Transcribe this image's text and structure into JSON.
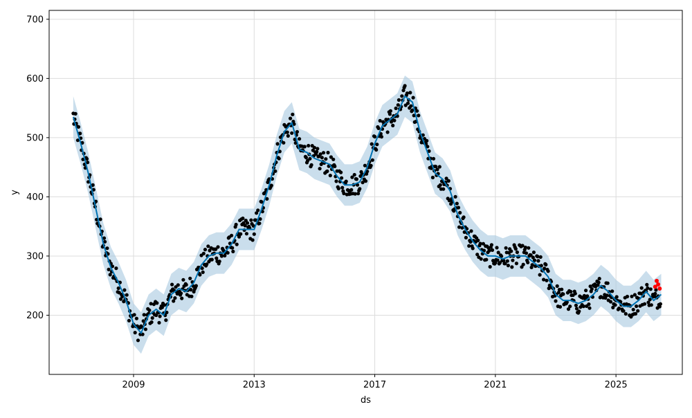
{
  "chart_data": {
    "type": "scatter",
    "title": "",
    "xlabel": "ds",
    "ylabel": "y",
    "xlim": [
      2006.2,
      2027.2
    ],
    "ylim": [
      100,
      715
    ],
    "x_ticks": [
      2009,
      2013,
      2017,
      2021,
      2025
    ],
    "x_tick_labels": [
      "2009",
      "2013",
      "2017",
      "2021",
      "2025"
    ],
    "y_ticks": [
      200,
      300,
      400,
      500,
      600,
      700
    ],
    "y_tick_labels": [
      "200",
      "300",
      "400",
      "500",
      "600",
      "700"
    ],
    "grid": true,
    "legend": "none",
    "colors": {
      "observed": "#000000",
      "forecast": "#0072b2",
      "interval": "#a6c8e0",
      "actual_recent": "#ff0000"
    },
    "forecast_x": [
      2007.0,
      2007.25,
      2007.5,
      2007.75,
      2008.0,
      2008.25,
      2008.5,
      2008.75,
      2009.0,
      2009.25,
      2009.5,
      2009.75,
      2010.0,
      2010.25,
      2010.5,
      2010.75,
      2011.0,
      2011.25,
      2011.5,
      2011.75,
      2012.0,
      2012.25,
      2012.5,
      2012.75,
      2013.0,
      2013.25,
      2013.5,
      2013.75,
      2014.0,
      2014.25,
      2014.5,
      2014.75,
      2015.0,
      2015.25,
      2015.5,
      2015.75,
      2016.0,
      2016.25,
      2016.5,
      2016.75,
      2017.0,
      2017.25,
      2017.5,
      2017.75,
      2018.0,
      2018.25,
      2018.5,
      2018.75,
      2019.0,
      2019.25,
      2019.5,
      2019.75,
      2020.0,
      2020.25,
      2020.5,
      2020.75,
      2021.0,
      2021.25,
      2021.5,
      2021.75,
      2022.0,
      2022.25,
      2022.5,
      2022.75,
      2023.0,
      2023.25,
      2023.5,
      2023.75,
      2024.0,
      2024.25,
      2024.5,
      2024.75,
      2025.0,
      2025.25,
      2025.5,
      2025.75,
      2026.0,
      2026.25,
      2026.5
    ],
    "forecast_y": [
      535,
      490,
      440,
      380,
      320,
      280,
      255,
      225,
      185,
      170,
      200,
      210,
      200,
      235,
      245,
      240,
      255,
      285,
      300,
      305,
      305,
      320,
      345,
      345,
      345,
      380,
      420,
      470,
      510,
      525,
      480,
      475,
      465,
      460,
      455,
      435,
      420,
      420,
      425,
      450,
      490,
      520,
      530,
      540,
      570,
      560,
      510,
      475,
      440,
      430,
      410,
      370,
      345,
      325,
      310,
      300,
      300,
      295,
      300,
      300,
      300,
      290,
      280,
      265,
      235,
      225,
      225,
      220,
      225,
      235,
      250,
      240,
      225,
      215,
      215,
      225,
      240,
      225,
      235
    ],
    "interval_half_width": 35,
    "actual_recent_x": [
      2026.3,
      2026.35,
      2026.4,
      2026.45
    ],
    "actual_recent_y": [
      248,
      258,
      252,
      245
    ]
  }
}
